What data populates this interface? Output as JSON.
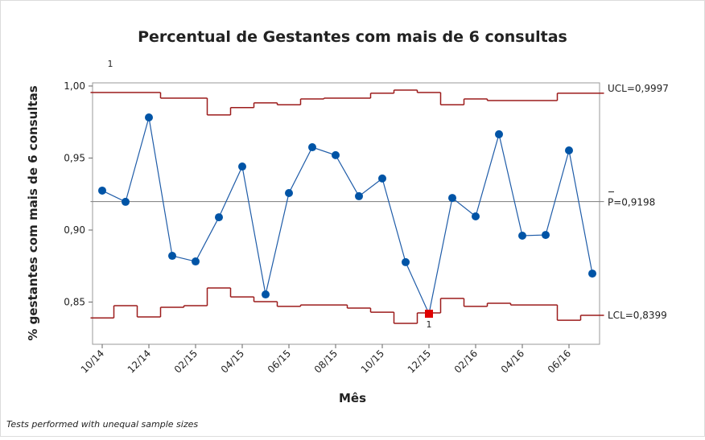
{
  "chart_data": {
    "type": "p_chart",
    "title": "Percentual de Gestantes com mais de 6 consultas",
    "x_label": "Mês",
    "y_label": "% gestantes com mais de 6 consultas",
    "footnote": "Tests performed with unequal sample sizes",
    "categories": [
      "10/14",
      null,
      "12/14",
      null,
      "02/15",
      null,
      "04/15",
      null,
      "06/15",
      null,
      "08/15",
      null,
      "10/15",
      null,
      "12/15",
      null,
      "02/16",
      null,
      "04/16",
      null,
      "06/16",
      null
    ],
    "values": [
      0.9274,
      0.9196,
      0.9782,
      0.8821,
      0.8782,
      0.9089,
      0.9441,
      0.8553,
      0.9257,
      0.9575,
      0.952,
      0.9235,
      0.9358,
      0.8777,
      0.8419,
      0.9223,
      0.9095,
      0.9665,
      0.8961,
      0.8966,
      0.9553,
      0.8698
    ],
    "ucl": [
      0.9955,
      0.9955,
      0.9955,
      0.9916,
      0.9916,
      0.9799,
      0.985,
      0.9883,
      0.987,
      0.991,
      0.9916,
      0.9916,
      0.995,
      0.9972,
      0.9955,
      0.987,
      0.991,
      0.9899,
      0.9899,
      0.9899,
      0.995,
      0.995
    ],
    "lcl": [
      0.839,
      0.8475,
      0.8397,
      0.8464,
      0.8475,
      0.8598,
      0.8536,
      0.8503,
      0.847,
      0.848,
      0.848,
      0.8458,
      0.843,
      0.8352,
      0.8425,
      0.8525,
      0.847,
      0.8492,
      0.848,
      0.848,
      0.8374,
      0.8408
    ],
    "center_line": 0.9198,
    "ucl_label": "UCL=0,9997",
    "center_label": "P=0,9198",
    "lcl_label": "LCL=0,8399",
    "test_flags": [
      {
        "index": 0,
        "label": "1",
        "position": "top"
      },
      {
        "index": 14,
        "label": "1",
        "position": "bottom"
      }
    ],
    "ylim": [
      0.8207,
      1.0022
    ],
    "yticks": [
      {
        "value": 0.85,
        "label": "0,85"
      },
      {
        "value": 0.9,
        "label": "0,90"
      },
      {
        "value": 0.95,
        "label": "0,95"
      },
      {
        "value": 1.0,
        "label": "1,00"
      }
    ],
    "line_color": "#1f5ca8",
    "point_color": "#0054a6",
    "flag_color": "#e00000",
    "limit_color": "#9c1b1b",
    "center_color": "#8a8a8a"
  }
}
